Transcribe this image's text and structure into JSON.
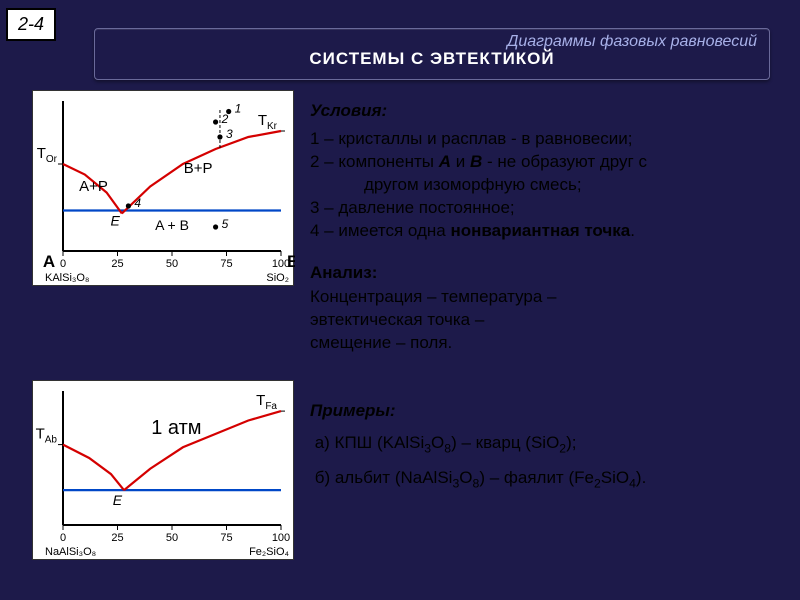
{
  "page_number": "2-4",
  "header": {
    "super": "Диаграммы фазовых равновесий",
    "main": "СИСТЕМЫ  С  ЭВТЕКТИКОЙ"
  },
  "conditions": {
    "title": "Условия:",
    "items": [
      "1 – кристаллы и расплав - в равновесии;",
      "2 – компоненты <span class=\"bold\"><i>А</i></span> и <span class=\"bold\"><i>В</i></span> - не образуют друг с",
      "<span class=\"indent\">другом изоморфную смесь;</span>",
      "3 – давление постоянное;",
      "4 – имеется одна <span class=\"bold\">нонвариантная точка</span>."
    ]
  },
  "analysis": {
    "title": "Анализ:",
    "body": "Концентрация – температура –<br>эвтектическая точка –<br>смещение – поля."
  },
  "examples": {
    "title": "Примеры:",
    "a": "а) КПШ (KAlSi<sub>3</sub>O<sub>8</sub>) – кварц (SiO<sub>2</sub>);",
    "b": "б) альбит (NaAlSi<sub>3</sub>O<sub>8</sub>) – фаялит (Fe<sub>2</sub>SiO<sub>4</sub>)."
  },
  "chart1": {
    "type": "phase-diagram",
    "xlim": [
      0,
      100
    ],
    "xticks": [
      0,
      25,
      50,
      75,
      100
    ],
    "left_label": "A",
    "right_label": "B",
    "left_sub": "KAlSi₃O₈",
    "right_sub": "SiO₂",
    "T_left": "T_Or",
    "T_right": "T_Kr",
    "eutectic_label": "E",
    "regions": {
      "left": "A+P",
      "right": "B+P",
      "bottom": "A + B"
    },
    "points": [
      "1",
      "2",
      "3",
      "4",
      "5"
    ],
    "curve_color": "#d40000",
    "solidus_color": "#0047c7",
    "line_width": 2.2,
    "background": "#ffffff",
    "curve_left": [
      [
        0,
        0.42
      ],
      [
        10,
        0.49
      ],
      [
        20,
        0.61
      ],
      [
        27,
        0.75
      ]
    ],
    "curve_right": [
      [
        27,
        0.75
      ],
      [
        40,
        0.57
      ],
      [
        55,
        0.42
      ],
      [
        70,
        0.32
      ],
      [
        85,
        0.24
      ],
      [
        100,
        0.2
      ]
    ],
    "solidus_y": 0.73,
    "point_coords": {
      "1": [
        76,
        0.07
      ],
      "2": [
        70,
        0.14
      ],
      "3": [
        72,
        0.24
      ],
      "4": [
        30,
        0.7
      ],
      "5": [
        70,
        0.84
      ]
    }
  },
  "chart2": {
    "type": "phase-diagram",
    "xlim": [
      0,
      100
    ],
    "xticks": [
      0,
      25,
      50,
      75,
      100
    ],
    "left_sub": "NaAlSi₃O₈",
    "right_sub": "Fe₂SiO₄",
    "T_left": "T_Ab",
    "T_right": "T_Fa",
    "center_label": "1 атм",
    "eutectic_label": "E",
    "curve_color": "#d40000",
    "solidus_color": "#0047c7",
    "line_width": 2.2,
    "background": "#ffffff",
    "curve_left": [
      [
        0,
        0.4
      ],
      [
        12,
        0.5
      ],
      [
        22,
        0.62
      ],
      [
        28,
        0.74
      ]
    ],
    "curve_right": [
      [
        28,
        0.74
      ],
      [
        40,
        0.58
      ],
      [
        55,
        0.42
      ],
      [
        70,
        0.32
      ],
      [
        85,
        0.22
      ],
      [
        100,
        0.15
      ]
    ],
    "solidus_y": 0.74
  }
}
